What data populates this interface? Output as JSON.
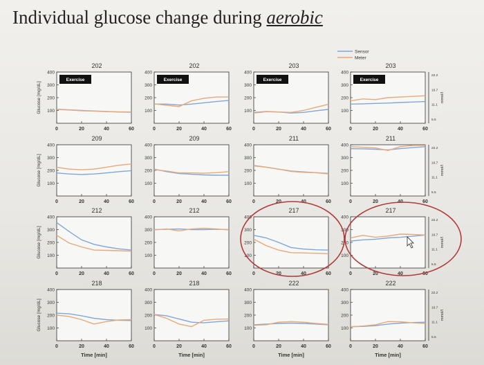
{
  "slide": {
    "title_prefix": "Individual glucose change during ",
    "title_emphasis": "aerobic"
  },
  "legend": {
    "sensor": "Sensor",
    "meter": "Meter"
  },
  "colors": {
    "sensor": "#7fa6dc",
    "meter": "#e8a878",
    "circle": "#b03a3a",
    "exercise_bg": "#111111"
  },
  "axis_text": {
    "ylabel": "Glucose [mg/dL]",
    "xlabel": "Time [min]",
    "right_ylabel": "mmol/l",
    "exercise": "Exercise"
  },
  "chart_data": [
    {
      "type": "line",
      "title": "202",
      "exercise": true,
      "xlim": [
        0,
        60
      ],
      "ylim": [
        0,
        400
      ],
      "x": [
        0,
        10,
        20,
        30,
        40,
        50,
        60
      ],
      "series": [
        {
          "name": "Sensor",
          "values": [
            110,
            105,
            100,
            96,
            92,
            88,
            86
          ]
        },
        {
          "name": "Meter",
          "values": [
            108,
            104,
            98,
            95,
            91,
            89,
            88
          ]
        }
      ]
    },
    {
      "type": "line",
      "title": "202",
      "exercise": true,
      "xlim": [
        0,
        60
      ],
      "ylim": [
        0,
        400
      ],
      "x": [
        0,
        10,
        20,
        30,
        40,
        50,
        60
      ],
      "series": [
        {
          "name": "Sensor",
          "values": [
            150,
            150,
            142,
            150,
            160,
            170,
            178
          ]
        },
        {
          "name": "Meter",
          "values": [
            152,
            140,
            130,
            175,
            195,
            205,
            205
          ]
        }
      ]
    },
    {
      "type": "line",
      "title": "203",
      "exercise": true,
      "xlim": [
        0,
        60
      ],
      "ylim": [
        0,
        400
      ],
      "x": [
        0,
        10,
        20,
        30,
        40,
        50,
        60
      ],
      "series": [
        {
          "name": "Sensor",
          "values": [
            85,
            92,
            88,
            80,
            85,
            98,
            108
          ]
        },
        {
          "name": "Meter",
          "values": [
            80,
            90,
            88,
            85,
            100,
            125,
            148
          ]
        }
      ]
    },
    {
      "type": "line",
      "title": "203",
      "exercise": true,
      "xlim": [
        0,
        60
      ],
      "ylim": [
        0,
        400
      ],
      "x": [
        0,
        10,
        20,
        30,
        40,
        50,
        60
      ],
      "series": [
        {
          "name": "Sensor",
          "values": [
            150,
            152,
            155,
            158,
            162,
            166,
            170
          ]
        },
        {
          "name": "Meter",
          "values": [
            175,
            190,
            185,
            200,
            205,
            210,
            215
          ]
        }
      ]
    },
    {
      "type": "line",
      "title": "209",
      "exercise": false,
      "xlim": [
        0,
        60
      ],
      "ylim": [
        0,
        400
      ],
      "x": [
        0,
        10,
        20,
        30,
        40,
        50,
        60
      ],
      "series": [
        {
          "name": "Sensor",
          "values": [
            180,
            172,
            168,
            172,
            180,
            190,
            198
          ]
        },
        {
          "name": "Meter",
          "values": [
            225,
            210,
            205,
            210,
            225,
            240,
            250
          ]
        }
      ]
    },
    {
      "type": "line",
      "title": "209",
      "exercise": false,
      "xlim": [
        0,
        60
      ],
      "ylim": [
        0,
        400
      ],
      "x": [
        0,
        10,
        20,
        30,
        40,
        50,
        60
      ],
      "series": [
        {
          "name": "Sensor",
          "values": [
            210,
            190,
            175,
            170,
            165,
            162,
            162
          ]
        },
        {
          "name": "Meter",
          "values": [
            205,
            195,
            180,
            180,
            178,
            182,
            190
          ]
        }
      ]
    },
    {
      "type": "line",
      "title": "211",
      "exercise": false,
      "xlim": [
        0,
        60
      ],
      "ylim": [
        0,
        400
      ],
      "x": [
        0,
        10,
        20,
        30,
        40,
        50,
        60
      ],
      "series": [
        {
          "name": "Sensor",
          "values": [
            238,
            225,
            210,
            195,
            188,
            182,
            176
          ]
        },
        {
          "name": "Meter",
          "values": [
            235,
            225,
            210,
            192,
            185,
            182,
            172
          ]
        }
      ]
    },
    {
      "type": "line",
      "title": "211",
      "exercise": false,
      "xlim": [
        0,
        60
      ],
      "ylim": [
        0,
        400
      ],
      "x": [
        0,
        10,
        20,
        30,
        40,
        50,
        60
      ],
      "series": [
        {
          "name": "Sensor",
          "values": [
            370,
            368,
            365,
            360,
            370,
            378,
            385
          ]
        },
        {
          "name": "Meter",
          "values": [
            385,
            380,
            375,
            355,
            385,
            395,
            395
          ]
        }
      ]
    },
    {
      "type": "line",
      "title": "212",
      "exercise": false,
      "xlim": [
        0,
        60
      ],
      "ylim": [
        0,
        400
      ],
      "x": [
        0,
        10,
        20,
        30,
        40,
        50,
        60
      ],
      "series": [
        {
          "name": "Sensor",
          "values": [
            355,
            285,
            220,
            185,
            165,
            150,
            140
          ]
        },
        {
          "name": "Meter",
          "values": [
            255,
            195,
            165,
            140,
            138,
            135,
            132
          ]
        }
      ]
    },
    {
      "type": "line",
      "title": "212",
      "exercise": false,
      "xlim": [
        0,
        60
      ],
      "ylim": [
        0,
        400
      ],
      "x": [
        0,
        10,
        20,
        30,
        40,
        50,
        60
      ],
      "series": [
        {
          "name": "Sensor",
          "values": [
            300,
            302,
            305,
            300,
            300,
            302,
            300
          ]
        },
        {
          "name": "Meter",
          "values": [
            298,
            305,
            290,
            305,
            310,
            305,
            298
          ]
        }
      ]
    },
    {
      "type": "line",
      "title": "217",
      "exercise": false,
      "xlim": [
        0,
        60
      ],
      "ylim": [
        0,
        400
      ],
      "x": [
        0,
        10,
        20,
        30,
        40,
        50,
        60
      ],
      "series": [
        {
          "name": "Sensor",
          "values": [
            255,
            235,
            200,
            160,
            148,
            142,
            140
          ]
        },
        {
          "name": "Meter",
          "values": [
            225,
            175,
            140,
            120,
            118,
            115,
            112
          ]
        }
      ]
    },
    {
      "type": "line",
      "title": "217",
      "exercise": false,
      "xlim": [
        0,
        60
      ],
      "ylim": [
        0,
        400
      ],
      "x": [
        0,
        10,
        20,
        30,
        40,
        50,
        60
      ],
      "series": [
        {
          "name": "Sensor",
          "values": [
            210,
            220,
            225,
            235,
            240,
            248,
            258
          ]
        },
        {
          "name": "Meter",
          "values": [
            235,
            255,
            240,
            250,
            265,
            262,
            258
          ]
        }
      ]
    },
    {
      "type": "line",
      "title": "218",
      "exercise": false,
      "xlim": [
        0,
        60
      ],
      "ylim": [
        0,
        400
      ],
      "x": [
        0,
        10,
        20,
        30,
        40,
        50,
        60
      ],
      "series": [
        {
          "name": "Sensor",
          "values": [
            215,
            210,
            195,
            175,
            165,
            160,
            158
          ]
        },
        {
          "name": "Meter",
          "values": [
            200,
            190,
            165,
            130,
            150,
            162,
            165
          ]
        }
      ]
    },
    {
      "type": "line",
      "title": "218",
      "exercise": false,
      "xlim": [
        0,
        60
      ],
      "ylim": [
        0,
        400
      ],
      "x": [
        0,
        10,
        20,
        30,
        40,
        50,
        60
      ],
      "series": [
        {
          "name": "Sensor",
          "values": [
            205,
            195,
            170,
            145,
            140,
            148,
            155
          ]
        },
        {
          "name": "Meter",
          "values": [
            205,
            175,
            130,
            110,
            160,
            168,
            170
          ]
        }
      ]
    },
    {
      "type": "line",
      "title": "222",
      "exercise": false,
      "xlim": [
        0,
        60
      ],
      "ylim": [
        0,
        400
      ],
      "x": [
        0,
        10,
        20,
        30,
        40,
        50,
        60
      ],
      "series": [
        {
          "name": "Sensor",
          "values": [
            125,
            130,
            135,
            138,
            135,
            130,
            125
          ]
        },
        {
          "name": "Meter",
          "values": [
            120,
            125,
            145,
            150,
            145,
            135,
            128
          ]
        }
      ]
    },
    {
      "type": "line",
      "title": "222",
      "exercise": false,
      "xlim": [
        0,
        60
      ],
      "ylim": [
        0,
        400
      ],
      "x": [
        0,
        10,
        20,
        30,
        40,
        50,
        60
      ],
      "series": [
        {
          "name": "Sensor",
          "values": [
            110,
            112,
            118,
            130,
            138,
            142,
            145
          ]
        },
        {
          "name": "Meter",
          "values": [
            108,
            115,
            125,
            150,
            148,
            140,
            135
          ]
        }
      ]
    }
  ],
  "ticks": {
    "x": [
      "0",
      "20",
      "40",
      "60"
    ],
    "y": [
      "100",
      "200",
      "300",
      "400"
    ],
    "mmol": [
      "22.2",
      "16.7",
      "11.1",
      "5.5"
    ]
  }
}
